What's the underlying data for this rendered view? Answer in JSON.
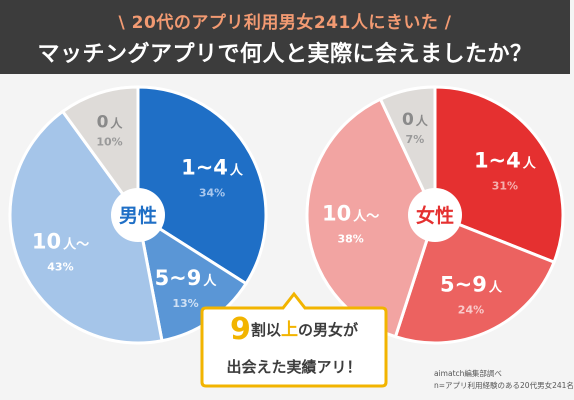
{
  "header": {
    "subtitle": "\\ 20代のアプリ利用男女241人にきいた /",
    "title": "マッチングアプリで何人と実際に会えましたか？"
  },
  "colors": {
    "male": [
      "#1f6fc6",
      "#5a96d6",
      "#a5c5e9",
      "#dedbd8"
    ],
    "female": [
      "#e53030",
      "#ec6260",
      "#f2a4a2",
      "#dedbd8"
    ],
    "accent": "#f2b400"
  },
  "callout": {
    "number": "9",
    "line1_mid": "割以",
    "line1_up": "上",
    "line1_end": "の男女が",
    "line2": "出会えた実績アリ！"
  },
  "source": {
    "line1": "aimatch編集部調べ",
    "line2": "n=アプリ利用経験のある20代男女241名"
  },
  "chart_data": [
    {
      "type": "pie",
      "title": "男性",
      "slices": [
        {
          "label": "1~4",
          "unit": "人",
          "value": 34,
          "pct_label": "34%"
        },
        {
          "label": "5~9",
          "unit": "人",
          "value": 13,
          "pct_label": "13%"
        },
        {
          "label": "10",
          "unit": "人～",
          "value": 43,
          "pct_label": "43%"
        },
        {
          "label": "0",
          "unit": "人",
          "value": 10,
          "pct_label": "10%"
        }
      ]
    },
    {
      "type": "pie",
      "title": "女性",
      "slices": [
        {
          "label": "1~4",
          "unit": "人",
          "value": 31,
          "pct_label": "31%"
        },
        {
          "label": "5~9",
          "unit": "人",
          "value": 24,
          "pct_label": "24%"
        },
        {
          "label": "10",
          "unit": "人～",
          "value": 38,
          "pct_label": "38%"
        },
        {
          "label": "0",
          "unit": "人",
          "value": 7,
          "pct_label": "7%"
        }
      ]
    }
  ]
}
